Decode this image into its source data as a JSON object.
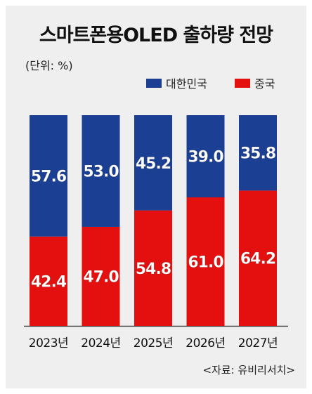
{
  "title": "스마트폰용OLED 출하량 전망",
  "unit_label": "(단위: %)",
  "source": "<자료: 유비리서치>",
  "colors": {
    "korea": "#1a3f93",
    "china": "#e40f0f",
    "background": "#efefef"
  },
  "legend": [
    {
      "label": "대한민국",
      "color": "#1a3f93"
    },
    {
      "label": "중국",
      "color": "#e40f0f"
    }
  ],
  "chart_data": {
    "type": "bar",
    "stacked": true,
    "categories": [
      "2023년",
      "2024년",
      "2025년",
      "2026년",
      "2027년"
    ],
    "series": [
      {
        "name": "중국",
        "values": [
          42.4,
          47.0,
          54.8,
          61.0,
          64.2
        ],
        "labels": [
          "42.4",
          "47.0",
          "54.8",
          "61.0",
          "64.2"
        ]
      },
      {
        "name": "대한민국",
        "values": [
          57.6,
          53.0,
          45.2,
          39.0,
          35.8
        ],
        "labels": [
          "57.6",
          "53.0",
          "45.2",
          "39.0",
          "35.8"
        ]
      }
    ],
    "ylim": [
      0,
      100
    ],
    "grid": false,
    "legend_position": "top-right"
  }
}
